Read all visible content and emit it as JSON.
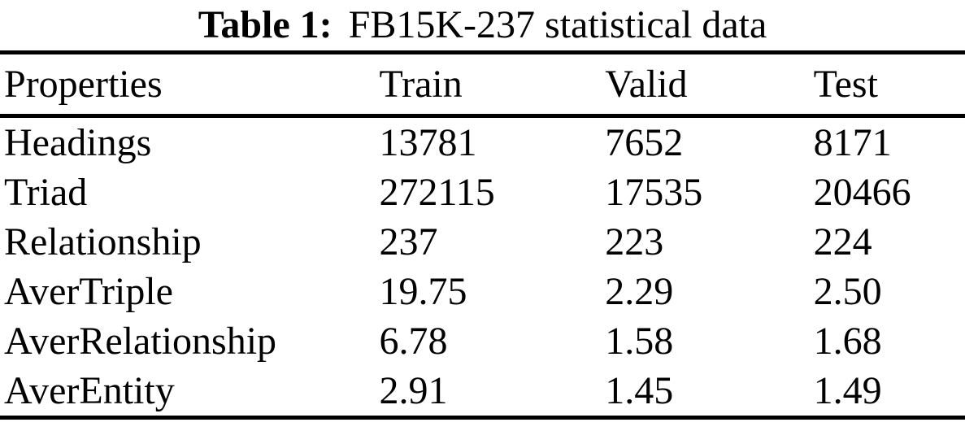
{
  "table": {
    "caption": {
      "label": "Table 1:",
      "title": "FB15K-237 statistical data"
    },
    "columns": [
      "Properties",
      "Train",
      "Valid",
      "Test"
    ],
    "rows": [
      [
        "Headings",
        "13781",
        "7652",
        "8171"
      ],
      [
        "Triad",
        "272115",
        "17535",
        "20466"
      ],
      [
        "Relationship",
        "237",
        "223",
        "224"
      ],
      [
        "AverTriple",
        "19.75",
        "2.29",
        "2.50"
      ],
      [
        "AverRelationship",
        "6.78",
        "1.58",
        "1.68"
      ],
      [
        "AverEntity",
        "2.91",
        "1.45",
        "1.49"
      ]
    ],
    "colors": {
      "text": "#000000",
      "background": "#ffffff",
      "rule": "#000000"
    }
  }
}
